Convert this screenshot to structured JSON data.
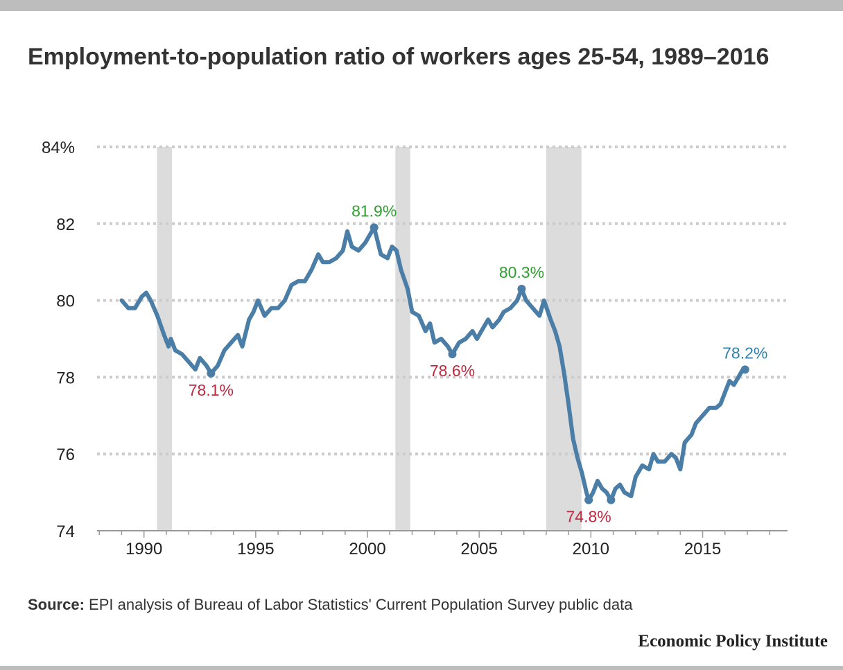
{
  "title": "Employment-to-population ratio of workers ages 25-54, 1989–2016",
  "source": {
    "label": "Source:",
    "text": "EPI analysis of Bureau of Labor Statistics' Current Population Survey public data"
  },
  "brand": "Economic Policy Institute",
  "colors": {
    "line": "#4a7ea6",
    "peak": "#2ca02c",
    "trough": "#c0283e",
    "latest": "#2f7fa8",
    "recession": "#dcdcdc",
    "grid": "#cccccc",
    "axis": "#999999"
  },
  "chart_data": {
    "type": "line",
    "title": "Employment-to-population ratio of workers ages 25-54, 1989–2016",
    "ylim": [
      74,
      84
    ],
    "xlim": [
      1987.9,
      2018.8
    ],
    "y_ticks": [
      74,
      76,
      78,
      80,
      82,
      84
    ],
    "y_tick_labels": [
      "74",
      "76",
      "78",
      "80",
      "82",
      "84%"
    ],
    "x_ticks": [
      1990,
      1995,
      2000,
      2005,
      2010,
      2015
    ],
    "x_tick_labels": [
      "1990",
      "1995",
      "2000",
      "2005",
      "2010",
      "2015"
    ],
    "grid": "horizontal dotted",
    "recessions": [
      [
        1990.58,
        1991.25
      ],
      [
        2001.25,
        2001.92
      ],
      [
        2008.0,
        2009.58
      ]
    ],
    "series": [
      {
        "values": [
          [
            1989.0,
            80.0
          ],
          [
            1989.3,
            79.8
          ],
          [
            1989.6,
            79.8
          ],
          [
            1989.9,
            80.1
          ],
          [
            1990.1,
            80.2
          ],
          [
            1990.3,
            80.0
          ],
          [
            1990.6,
            79.6
          ],
          [
            1990.9,
            79.1
          ],
          [
            1991.1,
            78.8
          ],
          [
            1991.2,
            79.0
          ],
          [
            1991.4,
            78.7
          ],
          [
            1991.7,
            78.6
          ],
          [
            1992.0,
            78.4
          ],
          [
            1992.3,
            78.2
          ],
          [
            1992.5,
            78.5
          ],
          [
            1992.8,
            78.3
          ],
          [
            1993.0,
            78.1
          ],
          [
            1993.3,
            78.3
          ],
          [
            1993.6,
            78.7
          ],
          [
            1993.9,
            78.9
          ],
          [
            1994.2,
            79.1
          ],
          [
            1994.4,
            78.8
          ],
          [
            1994.7,
            79.5
          ],
          [
            1994.9,
            79.7
          ],
          [
            1995.1,
            80.0
          ],
          [
            1995.4,
            79.6
          ],
          [
            1995.7,
            79.8
          ],
          [
            1996.0,
            79.8
          ],
          [
            1996.3,
            80.0
          ],
          [
            1996.6,
            80.4
          ],
          [
            1996.9,
            80.5
          ],
          [
            1997.2,
            80.5
          ],
          [
            1997.5,
            80.8
          ],
          [
            1997.8,
            81.2
          ],
          [
            1998.0,
            81.0
          ],
          [
            1998.3,
            81.0
          ],
          [
            1998.6,
            81.1
          ],
          [
            1998.9,
            81.3
          ],
          [
            1999.1,
            81.8
          ],
          [
            1999.3,
            81.4
          ],
          [
            1999.6,
            81.3
          ],
          [
            1999.9,
            81.5
          ],
          [
            2000.1,
            81.7
          ],
          [
            2000.3,
            81.9
          ],
          [
            2000.6,
            81.2
          ],
          [
            2000.9,
            81.1
          ],
          [
            2001.1,
            81.4
          ],
          [
            2001.3,
            81.3
          ],
          [
            2001.5,
            80.8
          ],
          [
            2001.8,
            80.3
          ],
          [
            2002.0,
            79.7
          ],
          [
            2002.3,
            79.6
          ],
          [
            2002.6,
            79.2
          ],
          [
            2002.8,
            79.4
          ],
          [
            2003.0,
            78.9
          ],
          [
            2003.3,
            79.0
          ],
          [
            2003.6,
            78.8
          ],
          [
            2003.8,
            78.6
          ],
          [
            2004.1,
            78.9
          ],
          [
            2004.4,
            79.0
          ],
          [
            2004.7,
            79.2
          ],
          [
            2004.9,
            79.0
          ],
          [
            2005.2,
            79.3
          ],
          [
            2005.4,
            79.5
          ],
          [
            2005.6,
            79.3
          ],
          [
            2005.9,
            79.5
          ],
          [
            2006.1,
            79.7
          ],
          [
            2006.4,
            79.8
          ],
          [
            2006.7,
            80.0
          ],
          [
            2006.9,
            80.3
          ],
          [
            2007.1,
            80.0
          ],
          [
            2007.4,
            79.8
          ],
          [
            2007.7,
            79.6
          ],
          [
            2007.9,
            80.0
          ],
          [
            2008.2,
            79.5
          ],
          [
            2008.4,
            79.2
          ],
          [
            2008.6,
            78.8
          ],
          [
            2008.8,
            78.1
          ],
          [
            2009.0,
            77.3
          ],
          [
            2009.2,
            76.4
          ],
          [
            2009.4,
            75.9
          ],
          [
            2009.6,
            75.5
          ],
          [
            2009.8,
            75.0
          ],
          [
            2009.9,
            74.8
          ],
          [
            2010.1,
            75.0
          ],
          [
            2010.3,
            75.3
          ],
          [
            2010.5,
            75.1
          ],
          [
            2010.7,
            75.0
          ],
          [
            2010.9,
            74.8
          ],
          [
            2011.1,
            75.1
          ],
          [
            2011.3,
            75.2
          ],
          [
            2011.5,
            75.0
          ],
          [
            2011.8,
            74.9
          ],
          [
            2012.0,
            75.4
          ],
          [
            2012.3,
            75.7
          ],
          [
            2012.6,
            75.6
          ],
          [
            2012.8,
            76.0
          ],
          [
            2013.0,
            75.8
          ],
          [
            2013.3,
            75.8
          ],
          [
            2013.6,
            76.0
          ],
          [
            2013.8,
            75.9
          ],
          [
            2014.0,
            75.6
          ],
          [
            2014.2,
            76.3
          ],
          [
            2014.5,
            76.5
          ],
          [
            2014.7,
            76.8
          ],
          [
            2015.0,
            77.0
          ],
          [
            2015.3,
            77.2
          ],
          [
            2015.6,
            77.2
          ],
          [
            2015.8,
            77.3
          ],
          [
            2016.0,
            77.6
          ],
          [
            2016.2,
            77.9
          ],
          [
            2016.4,
            77.8
          ],
          [
            2016.6,
            78.0
          ],
          [
            2016.8,
            78.2
          ],
          [
            2016.9,
            78.2
          ]
        ]
      }
    ],
    "annotations": [
      {
        "x": 1993.0,
        "y": 78.1,
        "label": "78.1%",
        "kind": "trough",
        "marker": true
      },
      {
        "x": 2000.3,
        "y": 81.9,
        "label": "81.9%",
        "kind": "peak",
        "marker": true
      },
      {
        "x": 2003.8,
        "y": 78.6,
        "label": "78.6%",
        "kind": "trough",
        "marker": true
      },
      {
        "x": 2006.9,
        "y": 80.3,
        "label": "80.3%",
        "kind": "peak",
        "marker": true
      },
      {
        "x": 2009.9,
        "y": 74.8,
        "label": "74.8%",
        "kind": "trough",
        "marker": true
      },
      {
        "x": 2010.9,
        "y": 74.8,
        "label": "",
        "kind": "trough",
        "marker": true
      },
      {
        "x": 2016.9,
        "y": 78.2,
        "label": "78.2%",
        "kind": "latest",
        "marker": true
      }
    ]
  }
}
